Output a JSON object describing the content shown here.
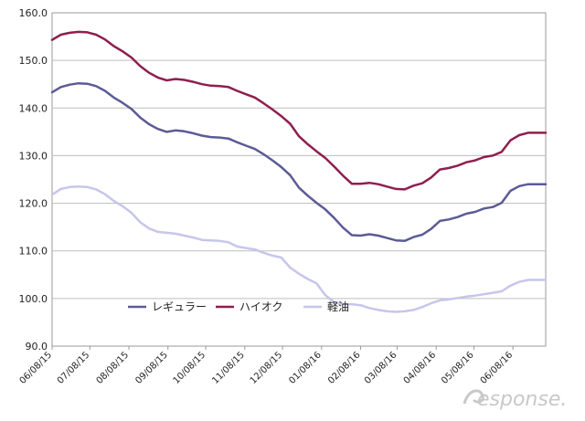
{
  "chart_data": {
    "type": "line",
    "title": "",
    "xlabel": "",
    "ylabel": "",
    "ylim": [
      90,
      160
    ],
    "yticks": [
      "90.0",
      "100.0",
      "110.0",
      "120.0",
      "130.0",
      "140.0",
      "150.0",
      "160.0"
    ],
    "xlim": [
      "2015-06-08",
      "2016-07-04"
    ],
    "xticks": [
      {
        "date": "2015-06-08",
        "label": "06/08/15"
      },
      {
        "date": "2015-07-08",
        "label": "07/08/15"
      },
      {
        "date": "2015-08-08",
        "label": "08/08/15"
      },
      {
        "date": "2015-09-08",
        "label": "09/08/15"
      },
      {
        "date": "2015-10-08",
        "label": "10/08/15"
      },
      {
        "date": "2015-11-08",
        "label": "11/08/15"
      },
      {
        "date": "2015-12-08",
        "label": "12/08/15"
      },
      {
        "date": "2016-01-08",
        "label": "01/08/16"
      },
      {
        "date": "2016-02-08",
        "label": "02/08/16"
      },
      {
        "date": "2016-03-08",
        "label": "03/08/16"
      },
      {
        "date": "2016-04-08",
        "label": "04/08/16"
      },
      {
        "date": "2016-05-08",
        "label": "05/08/16"
      },
      {
        "date": "2016-06-08",
        "label": "06/08/16"
      }
    ],
    "grid": true,
    "legend_position": "bottom-center",
    "x": [
      "2015-06-08",
      "2015-06-15",
      "2015-06-22",
      "2015-06-29",
      "2015-07-06",
      "2015-07-13",
      "2015-07-20",
      "2015-07-27",
      "2015-08-03",
      "2015-08-10",
      "2015-08-17",
      "2015-08-24",
      "2015-08-31",
      "2015-09-07",
      "2015-09-14",
      "2015-09-21",
      "2015-09-28",
      "2015-10-05",
      "2015-10-12",
      "2015-10-19",
      "2015-10-26",
      "2015-11-02",
      "2015-11-09",
      "2015-11-16",
      "2015-11-23",
      "2015-11-30",
      "2015-12-07",
      "2015-12-14",
      "2015-12-21",
      "2015-12-28",
      "2016-01-04",
      "2016-01-11",
      "2016-01-18",
      "2016-01-25",
      "2016-02-01",
      "2016-02-08",
      "2016-02-15",
      "2016-02-22",
      "2016-02-29",
      "2016-03-07",
      "2016-03-14",
      "2016-03-21",
      "2016-03-28",
      "2016-04-04",
      "2016-04-11",
      "2016-04-18",
      "2016-04-25",
      "2016-05-02",
      "2016-05-09",
      "2016-05-16",
      "2016-05-23",
      "2016-05-30",
      "2016-06-06",
      "2016-06-13",
      "2016-06-20",
      "2016-06-27",
      "2016-07-04"
    ],
    "series": [
      {
        "name": "レギュラー",
        "color": "#5b5b96",
        "values": [
          143.3,
          144.4,
          144.9,
          145.2,
          145.1,
          144.6,
          143.6,
          142.2,
          141.1,
          139.8,
          138.0,
          136.6,
          135.6,
          135.0,
          135.3,
          135.1,
          134.7,
          134.2,
          133.9,
          133.8,
          133.6,
          132.8,
          132.1,
          131.4,
          130.3,
          129.0,
          127.6,
          125.9,
          123.3,
          121.6,
          120.1,
          118.7,
          116.9,
          114.9,
          113.3,
          113.2,
          113.5,
          113.2,
          112.7,
          112.2,
          112.1,
          112.9,
          113.4,
          114.6,
          116.3,
          116.6,
          117.1,
          117.8,
          118.2,
          118.9,
          119.2,
          120.1,
          122.6,
          123.6,
          124.0,
          124.0,
          124.0
        ]
      },
      {
        "name": "ハイオク",
        "color": "#8e1f4f",
        "values": [
          154.3,
          155.4,
          155.8,
          156.0,
          155.9,
          155.4,
          154.4,
          153.0,
          151.9,
          150.6,
          148.8,
          147.4,
          146.4,
          145.8,
          146.1,
          145.9,
          145.5,
          145.0,
          144.7,
          144.6,
          144.4,
          143.6,
          142.9,
          142.2,
          141.0,
          139.7,
          138.3,
          136.7,
          134.1,
          132.4,
          130.9,
          129.5,
          127.7,
          125.8,
          124.1,
          124.1,
          124.3,
          124.0,
          123.5,
          123.0,
          122.9,
          123.7,
          124.2,
          125.4,
          127.1,
          127.4,
          127.9,
          128.6,
          129.0,
          129.7,
          130.0,
          130.8,
          133.2,
          134.3,
          134.8,
          134.8,
          134.8
        ]
      },
      {
        "name": "軽油",
        "color": "#c6c6ec",
        "values": [
          121.8,
          123.0,
          123.4,
          123.5,
          123.4,
          122.9,
          121.9,
          120.5,
          119.4,
          118.0,
          116.0,
          114.7,
          114.0,
          113.8,
          113.6,
          113.2,
          112.8,
          112.3,
          112.2,
          112.1,
          111.8,
          110.9,
          110.6,
          110.3,
          109.6,
          109.0,
          108.6,
          106.5,
          105.2,
          104.1,
          103.2,
          100.7,
          99.2,
          98.8,
          98.8,
          98.6,
          98.0,
          97.6,
          97.3,
          97.2,
          97.3,
          97.6,
          98.2,
          99.0,
          99.6,
          99.8,
          100.1,
          100.4,
          100.6,
          100.9,
          101.2,
          101.5,
          102.7,
          103.5,
          103.9,
          103.9,
          103.9
        ]
      }
    ]
  }
}
